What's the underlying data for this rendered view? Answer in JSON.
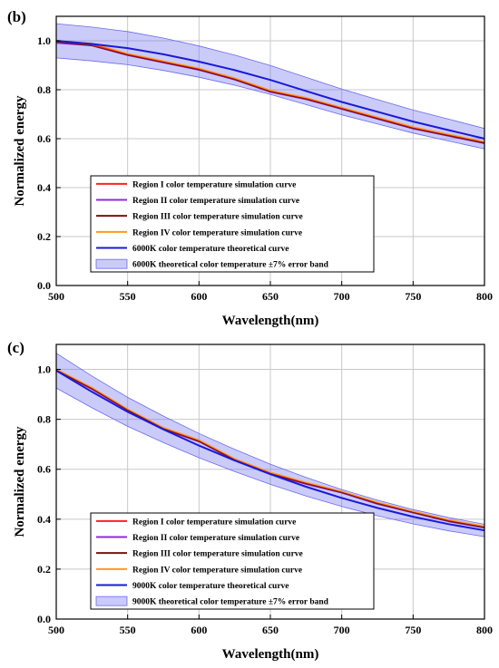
{
  "chart_data": [
    {
      "type": "line",
      "panel_label": "(b)",
      "xlabel": "Wavelength(nm)",
      "ylabel": "Normalized energy",
      "xlim": [
        500,
        800
      ],
      "ylim": [
        0.0,
        1.1
      ],
      "x_ticks": [
        "500",
        "550",
        "600",
        "650",
        "700",
        "750",
        "800"
      ],
      "y_ticks": [
        "0.0",
        "0.2",
        "0.4",
        "0.6",
        "0.8",
        "1.0"
      ],
      "grid": true,
      "legend_position": "bottom-left",
      "x": [
        500,
        525,
        550,
        575,
        600,
        625,
        650,
        675,
        700,
        725,
        750,
        775,
        800
      ],
      "series": [
        {
          "name": "Region I color temperature simulation curve",
          "color": "#ff2020",
          "values": [
            1.0,
            0.985,
            0.945,
            0.915,
            0.885,
            0.845,
            0.795,
            0.765,
            0.725,
            0.685,
            0.645,
            0.615,
            0.585
          ]
        },
        {
          "name": "Region II color temperature simulation curve",
          "color": "#8a2be2",
          "values": [
            0.99,
            0.98,
            0.94,
            0.91,
            0.88,
            0.84,
            0.79,
            0.76,
            0.72,
            0.68,
            0.64,
            0.61,
            0.58
          ]
        },
        {
          "name": "Region III color temperature simulation curve",
          "color": "#7b1010",
          "values": [
            0.995,
            0.98,
            0.942,
            0.912,
            0.882,
            0.842,
            0.792,
            0.762,
            0.722,
            0.682,
            0.642,
            0.612,
            0.582
          ]
        },
        {
          "name": "Region IV color temperature simulation curve",
          "color": "#ff9a1f",
          "values": [
            1.0,
            0.99,
            0.948,
            0.918,
            0.888,
            0.848,
            0.798,
            0.768,
            0.728,
            0.688,
            0.648,
            0.618,
            0.588
          ]
        },
        {
          "name": "6000K color temperature theoretical curve",
          "color": "#1a1ad8",
          "values": [
            1.0,
            0.987,
            0.97,
            0.945,
            0.915,
            0.88,
            0.84,
            0.795,
            0.75,
            0.71,
            0.67,
            0.635,
            0.6
          ]
        }
      ],
      "band": {
        "name": "6000K theoretical color temperature ±7% error band",
        "color": "#6a6af0",
        "relative_error": 0.07
      }
    },
    {
      "type": "line",
      "panel_label": "(c)",
      "xlabel": "Wavelength(nm)",
      "ylabel": "Normalized energy",
      "xlim": [
        500,
        800
      ],
      "ylim": [
        0.0,
        1.1
      ],
      "x_ticks": [
        "500",
        "550",
        "600",
        "650",
        "700",
        "750",
        "800"
      ],
      "y_ticks": [
        "0.0",
        "0.2",
        "0.4",
        "0.6",
        "0.8",
        "1.0"
      ],
      "grid": true,
      "legend_position": "bottom-left",
      "x": [
        500,
        525,
        550,
        575,
        600,
        625,
        650,
        675,
        700,
        725,
        750,
        775,
        800
      ],
      "series": [
        {
          "name": "Region I color temperature simulation curve",
          "color": "#ff2020",
          "values": [
            1.0,
            0.925,
            0.84,
            0.765,
            0.715,
            0.64,
            0.585,
            0.545,
            0.51,
            0.465,
            0.43,
            0.395,
            0.37
          ]
        },
        {
          "name": "Region II color temperature simulation curve",
          "color": "#8a2be2",
          "values": [
            0.995,
            0.92,
            0.835,
            0.76,
            0.71,
            0.635,
            0.58,
            0.54,
            0.505,
            0.46,
            0.425,
            0.39,
            0.365
          ]
        },
        {
          "name": "Region III color temperature simulation curve",
          "color": "#7b1010",
          "values": [
            0.997,
            0.922,
            0.837,
            0.762,
            0.712,
            0.637,
            0.582,
            0.542,
            0.507,
            0.462,
            0.427,
            0.392,
            0.367
          ]
        },
        {
          "name": "Region IV color temperature simulation curve",
          "color": "#ff9a1f",
          "values": [
            1.002,
            0.928,
            0.842,
            0.768,
            0.718,
            0.643,
            0.588,
            0.548,
            0.512,
            0.468,
            0.432,
            0.398,
            0.372
          ]
        },
        {
          "name": "9000K color temperature theoretical curve",
          "color": "#1a1ad8",
          "values": [
            0.995,
            0.91,
            0.83,
            0.76,
            0.695,
            0.635,
            0.58,
            0.53,
            0.485,
            0.445,
            0.41,
            0.38,
            0.355
          ]
        }
      ],
      "band": {
        "name": "9000K theoretical color temperature ±7% error band",
        "color": "#6a6af0",
        "relative_error": 0.07
      }
    }
  ]
}
